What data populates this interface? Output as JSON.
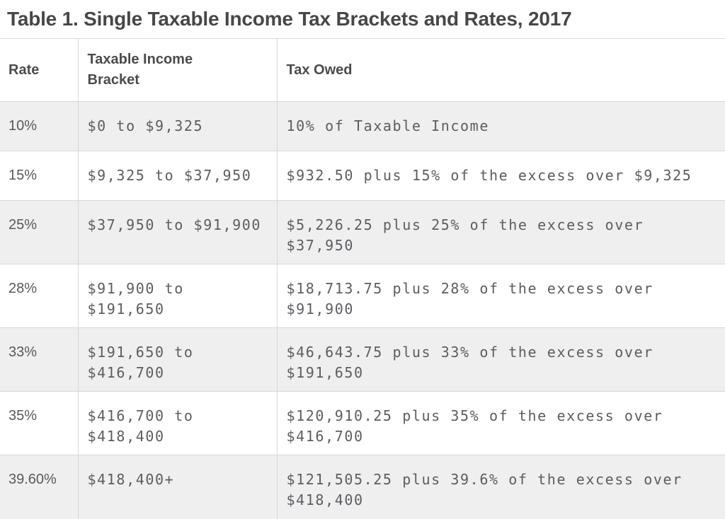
{
  "title": "Table 1. Single Taxable Income Tax Brackets and Rates, 2017",
  "table": {
    "columns": [
      "Rate",
      "Taxable Income Bracket",
      "Tax Owed"
    ],
    "rows": [
      {
        "rate": "10%",
        "bracket": "$0 to $9,325",
        "tax_owed": "10% of Taxable Income"
      },
      {
        "rate": "15%",
        "bracket": "$9,325 to $37,950",
        "tax_owed": "$932.50 plus 15% of the excess over $9,325"
      },
      {
        "rate": "25%",
        "bracket": "$37,950 to $91,900",
        "tax_owed": "$5,226.25 plus 25% of the excess over $37,950"
      },
      {
        "rate": "28%",
        "bracket": "$91,900 to $191,650",
        "tax_owed": "$18,713.75 plus 28% of the excess over $91,900"
      },
      {
        "rate": "33%",
        "bracket": "$191,650 to $416,700",
        "tax_owed": "$46,643.75 plus 33% of the excess over $191,650"
      },
      {
        "rate": "35%",
        "bracket": "$416,700 to $418,400",
        "tax_owed": "$120,910.25 plus 35% of the excess over $416,700"
      },
      {
        "rate": "39.60%",
        "bracket": "$418,400+",
        "tax_owed": "$121,505.25 plus 39.6% of the excess over $418,400"
      }
    ]
  },
  "colors": {
    "row_shaded": "#efefef",
    "row_plain": "#ffffff",
    "border": "#d8d8d8",
    "title_text": "#474747",
    "header_text": "#4b4b4d",
    "body_text": "#5c5d60"
  }
}
